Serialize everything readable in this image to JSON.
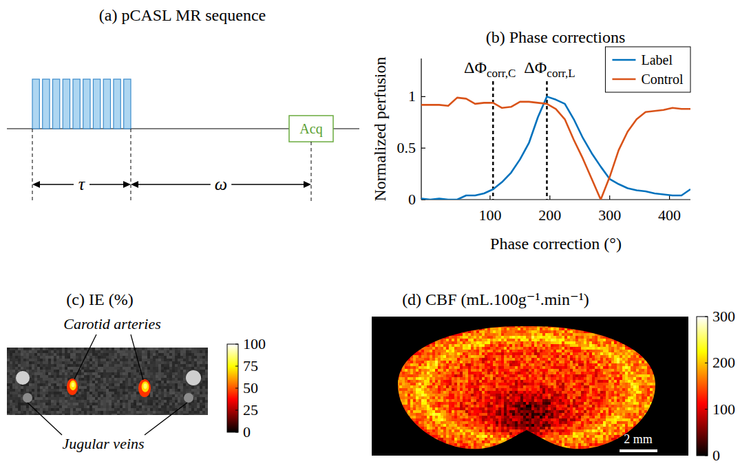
{
  "panel_a": {
    "title": "(a) pCASL MR sequence",
    "pulses": 10,
    "tau_label": "τ",
    "omega_label": "ω",
    "acq_label": "Acq"
  },
  "chart_data": {
    "type": "line",
    "title": "(b) Phase corrections",
    "x_label": "Phase correction (°)",
    "y_label": "Normalized perfusion",
    "x": [
      -15,
      0,
      15,
      30,
      45,
      60,
      75,
      90,
      105,
      120,
      135,
      150,
      165,
      180,
      195,
      210,
      225,
      240,
      255,
      270,
      285,
      300,
      315,
      330,
      345,
      360,
      375,
      390,
      405,
      420,
      435
    ],
    "series": [
      {
        "name": "Label",
        "color": "#0072bd",
        "values": [
          0.01,
          0,
          0.01,
          0,
          0,
          0.04,
          0.04,
          0.06,
          0.1,
          0.17,
          0.26,
          0.39,
          0.55,
          0.8,
          1.0,
          0.97,
          0.93,
          0.78,
          0.6,
          0.45,
          0.32,
          0.2,
          0.15,
          0.11,
          0.09,
          0.08,
          0.06,
          0.05,
          0.04,
          0.04,
          0.1
        ]
      },
      {
        "name": "Control",
        "color": "#d95319",
        "values": [
          0.92,
          0.92,
          0.92,
          0.91,
          0.99,
          0.98,
          0.93,
          0.94,
          0.94,
          0.89,
          0.9,
          0.95,
          0.95,
          0.94,
          0.93,
          0.88,
          0.78,
          0.58,
          0.4,
          0.2,
          0,
          0.22,
          0.48,
          0.66,
          0.78,
          0.85,
          0.86,
          0.87,
          0.89,
          0.88,
          0.88
        ]
      }
    ],
    "xlim": [
      -15,
      435
    ],
    "ylim": [
      0,
      1.37
    ],
    "xticks": [
      100,
      200,
      300,
      400
    ],
    "yticks": [
      0,
      0.5,
      1
    ],
    "grid": false,
    "legend": "top-right",
    "annotations": [
      {
        "x": 105,
        "label": "ΔΦ",
        "subscript": "corr,C"
      },
      {
        "x": 195,
        "label": "ΔΦ",
        "subscript": "corr,L"
      }
    ]
  },
  "panel_c": {
    "title": "(c) IE (%)",
    "arteries_label": "Carotid arteries",
    "veins_label": "Jugular veins",
    "colorbar": {
      "range": [
        0,
        100
      ],
      "ticks": [
        0,
        25,
        50,
        75,
        100
      ]
    }
  },
  "panel_d": {
    "title": "(d) CBF (mL.100g⁻¹.min⁻¹)",
    "scale_bar": "2 mm",
    "colorbar": {
      "range": [
        0,
        300
      ],
      "ticks": [
        0,
        100,
        200,
        300
      ]
    }
  }
}
